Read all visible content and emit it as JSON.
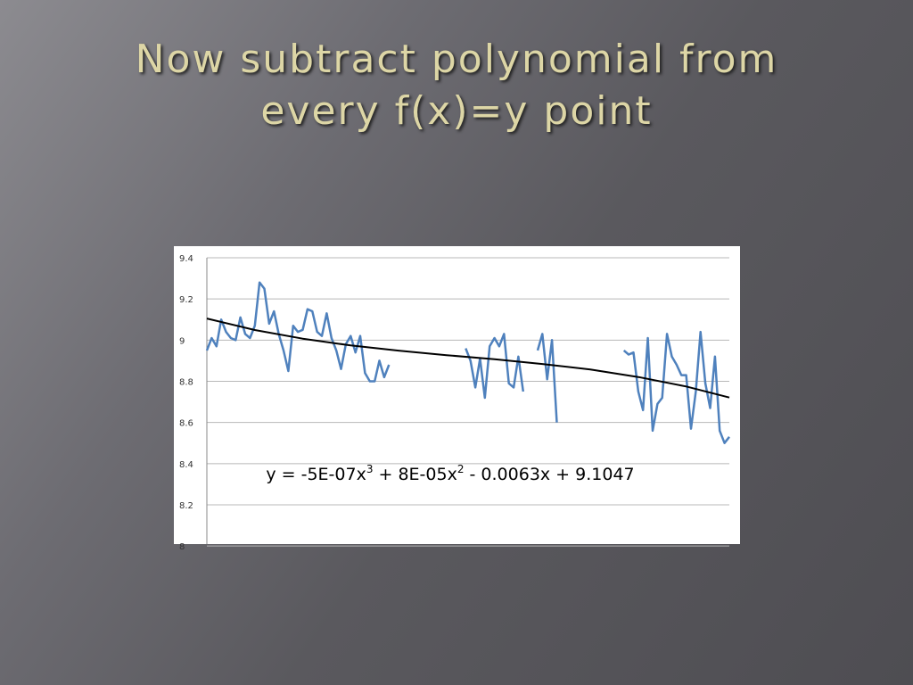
{
  "slide": {
    "title_lines": [
      "Now subtract polynomial from",
      "every f(x)=y point"
    ]
  },
  "chart_data": {
    "type": "line",
    "annotation": [
      "y = -5E-07x",
      "3",
      " + 8E-05x",
      "2",
      " - 0.0063x + 9.1047"
    ],
    "ylim": [
      8,
      9.4
    ],
    "yticks": [
      8,
      8.2,
      8.4,
      8.6,
      8.8,
      9,
      9.2,
      9.4
    ],
    "xlim": [
      0,
      109
    ],
    "grid": true,
    "series": [
      {
        "color": "#4f81bd",
        "values": [
          8.95,
          9.01,
          8.97,
          9.1,
          9.04,
          9.01,
          9.0,
          9.11,
          9.03,
          9.01,
          9.07,
          9.28,
          9.25,
          9.08,
          9.14,
          9.03,
          8.95,
          8.85,
          9.07,
          9.04,
          9.05,
          9.15,
          9.14,
          9.04,
          9.02,
          9.13,
          9.01,
          8.95,
          8.86,
          8.98,
          9.02,
          8.94,
          9.02,
          8.84,
          8.8,
          8.8,
          8.9,
          8.82,
          8.88,
          null,
          null,
          null,
          null,
          null,
          null,
          null,
          null,
          null,
          null,
          null,
          null,
          null,
          null,
          null,
          8.96,
          8.9,
          8.77,
          8.91,
          8.72,
          8.97,
          9.01,
          8.97,
          9.03,
          8.79,
          8.77,
          8.92,
          8.75,
          null,
          null,
          8.95,
          9.03,
          8.81,
          9.0,
          8.6,
          null,
          null,
          null,
          null,
          null,
          null,
          null,
          null,
          null,
          null,
          null,
          null,
          null,
          8.95,
          8.93,
          8.94,
          8.75,
          8.66,
          9.01,
          8.56,
          8.69,
          8.72,
          9.03,
          8.92,
          8.88,
          8.83,
          8.83,
          8.57,
          8.75,
          9.04,
          8.79,
          8.67,
          8.92,
          8.56,
          8.5,
          8.53
        ]
      },
      {
        "color": "#000000",
        "x": [
          0,
          10,
          20,
          30,
          40,
          50,
          60,
          70,
          80,
          90,
          100,
          109
        ],
        "values": [
          9.105,
          9.049,
          9.007,
          8.974,
          8.949,
          8.927,
          8.907,
          8.884,
          8.857,
          8.821,
          8.775,
          8.721
        ]
      }
    ]
  }
}
